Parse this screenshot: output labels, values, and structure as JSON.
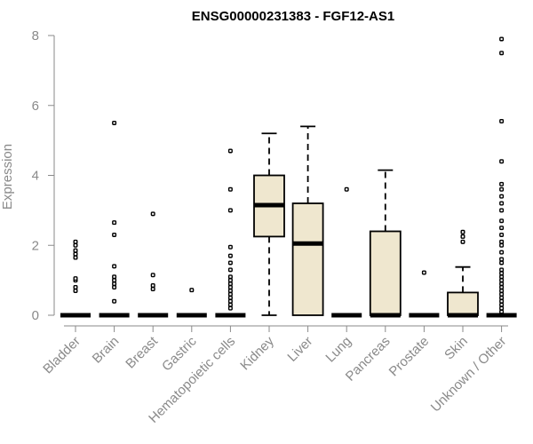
{
  "chart_data": {
    "type": "boxplot",
    "title": "ENSG00000231383 - FGF12-AS1",
    "ylabel": "Expression",
    "xlabel": "",
    "ylim": [
      0,
      8
    ],
    "yticks": [
      0,
      2,
      4,
      6,
      8
    ],
    "box_color": "#efe7cf",
    "groups": [
      {
        "name": "Bladder",
        "q1": 0,
        "median": 0,
        "q3": 0,
        "whisker_low": 0,
        "whisker_high": 0,
        "outliers": [
          0.7,
          0.8,
          1.0,
          1.05,
          1.65,
          1.75,
          1.85,
          2.0,
          2.1
        ]
      },
      {
        "name": "Brain",
        "q1": 0,
        "median": 0,
        "q3": 0,
        "whisker_low": 0,
        "whisker_high": 0,
        "outliers": [
          0.4,
          0.8,
          0.9,
          1.0,
          1.1,
          1.4,
          2.3,
          2.65,
          5.5
        ]
      },
      {
        "name": "Breast",
        "q1": 0,
        "median": 0,
        "q3": 0,
        "whisker_low": 0,
        "whisker_high": 0,
        "outliers": [
          0.75,
          0.85,
          1.15,
          2.9
        ]
      },
      {
        "name": "Gastric",
        "q1": 0,
        "median": 0,
        "q3": 0,
        "whisker_low": 0,
        "whisker_high": 0,
        "outliers": [
          0.72
        ]
      },
      {
        "name": "Hematopoietic cells",
        "q1": 0,
        "median": 0,
        "q3": 0,
        "whisker_low": 0,
        "whisker_high": 0,
        "outliers": [
          0.2,
          0.3,
          0.4,
          0.5,
          0.6,
          0.7,
          0.8,
          0.9,
          1.0,
          1.1,
          1.3,
          1.5,
          1.7,
          1.95,
          3.0,
          3.6,
          4.7
        ]
      },
      {
        "name": "Kidney",
        "q1": 2.25,
        "median": 3.15,
        "q3": 4.0,
        "whisker_low": 0.0,
        "whisker_high": 5.2,
        "outliers": []
      },
      {
        "name": "Liver",
        "q1": 0,
        "median": 2.05,
        "q3": 3.2,
        "whisker_low": 0,
        "whisker_high": 5.4,
        "outliers": []
      },
      {
        "name": "Lung",
        "q1": 0,
        "median": 0,
        "q3": 0,
        "whisker_low": 0,
        "whisker_high": 0,
        "outliers": [
          3.6
        ]
      },
      {
        "name": "Pancreas",
        "q1": 0,
        "median": 0,
        "q3": 2.4,
        "whisker_low": 0,
        "whisker_high": 4.15,
        "outliers": []
      },
      {
        "name": "Prostate",
        "q1": 0,
        "median": 0,
        "q3": 0,
        "whisker_low": 0,
        "whisker_high": 0,
        "outliers": [
          1.22
        ]
      },
      {
        "name": "Skin",
        "q1": 0,
        "median": 0,
        "q3": 0.65,
        "whisker_low": 0,
        "whisker_high": 1.38,
        "outliers": [
          2.1,
          2.25,
          2.38
        ]
      },
      {
        "name": "Unknown / Other",
        "q1": 0,
        "median": 0,
        "q3": 0,
        "whisker_low": 0,
        "whisker_high": 0,
        "outliers": [
          0.1,
          0.2,
          0.3,
          0.4,
          0.5,
          0.6,
          0.7,
          0.8,
          0.9,
          1.0,
          1.1,
          1.2,
          1.3,
          1.5,
          1.6,
          1.8,
          2.0,
          2.1,
          2.3,
          2.5,
          2.7,
          3.0,
          3.2,
          3.4,
          3.6,
          3.75,
          4.4,
          5.55,
          7.5,
          7.9
        ]
      }
    ]
  }
}
